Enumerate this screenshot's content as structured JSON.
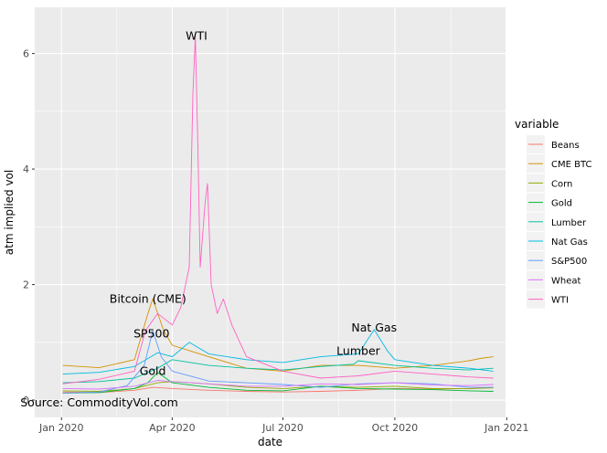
{
  "chart_data": {
    "type": "line",
    "title": "",
    "xlabel": "date",
    "ylabel": "atm implied vol",
    "xlim": [
      "2019-12-10",
      "2020-12-31"
    ],
    "ylim": [
      -0.3,
      6.8
    ],
    "x_ticks": [
      {
        "date": "2020-01-01",
        "label": "Jan 2020"
      },
      {
        "date": "2020-04-01",
        "label": "Apr 2020"
      },
      {
        "date": "2020-07-01",
        "label": "Jul 2020"
      },
      {
        "date": "2020-10-01",
        "label": "Oct 2020"
      },
      {
        "date": "2021-01-01",
        "label": "Jan 2021"
      }
    ],
    "y_ticks": [
      0,
      2,
      4,
      6
    ],
    "grid": true,
    "legend": {
      "title": "variable",
      "position": "right"
    },
    "series": [
      {
        "name": "Beans",
        "color": "#F8766D",
        "points": [
          [
            "2020-01-02",
            0.14
          ],
          [
            "2020-02-01",
            0.13
          ],
          [
            "2020-03-01",
            0.17
          ],
          [
            "2020-03-16",
            0.22
          ],
          [
            "2020-04-01",
            0.2
          ],
          [
            "2020-05-01",
            0.17
          ],
          [
            "2020-06-01",
            0.15
          ],
          [
            "2020-07-01",
            0.14
          ],
          [
            "2020-08-01",
            0.15
          ],
          [
            "2020-09-01",
            0.17
          ],
          [
            "2020-10-01",
            0.2
          ],
          [
            "2020-11-01",
            0.19
          ],
          [
            "2020-12-01",
            0.2
          ],
          [
            "2020-12-21",
            0.22
          ]
        ]
      },
      {
        "name": "CME BTC",
        "color": "#D39200",
        "points": [
          [
            "2020-01-02",
            0.6
          ],
          [
            "2020-02-01",
            0.56
          ],
          [
            "2020-03-01",
            0.7
          ],
          [
            "2020-03-12",
            1.5
          ],
          [
            "2020-03-16",
            1.75
          ],
          [
            "2020-03-25",
            1.2
          ],
          [
            "2020-04-01",
            0.95
          ],
          [
            "2020-05-01",
            0.75
          ],
          [
            "2020-06-01",
            0.55
          ],
          [
            "2020-07-01",
            0.5
          ],
          [
            "2020-08-01",
            0.6
          ],
          [
            "2020-09-01",
            0.6
          ],
          [
            "2020-10-01",
            0.55
          ],
          [
            "2020-11-01",
            0.6
          ],
          [
            "2020-12-01",
            0.68
          ],
          [
            "2020-12-10",
            0.72
          ],
          [
            "2020-12-21",
            0.75
          ]
        ]
      },
      {
        "name": "Corn",
        "color": "#93AA00",
        "points": [
          [
            "2020-01-02",
            0.16
          ],
          [
            "2020-02-01",
            0.15
          ],
          [
            "2020-03-01",
            0.2
          ],
          [
            "2020-03-20",
            0.3
          ],
          [
            "2020-04-01",
            0.32
          ],
          [
            "2020-05-01",
            0.28
          ],
          [
            "2020-06-01",
            0.22
          ],
          [
            "2020-07-01",
            0.2
          ],
          [
            "2020-08-01",
            0.24
          ],
          [
            "2020-09-01",
            0.22
          ],
          [
            "2020-10-01",
            0.24
          ],
          [
            "2020-11-01",
            0.2
          ],
          [
            "2020-12-01",
            0.2
          ],
          [
            "2020-12-21",
            0.21
          ]
        ]
      },
      {
        "name": "Gold",
        "color": "#00BA38",
        "points": [
          [
            "2020-01-02",
            0.12
          ],
          [
            "2020-02-01",
            0.13
          ],
          [
            "2020-03-01",
            0.2
          ],
          [
            "2020-03-12",
            0.3
          ],
          [
            "2020-03-20",
            0.48
          ],
          [
            "2020-04-01",
            0.3
          ],
          [
            "2020-05-01",
            0.22
          ],
          [
            "2020-06-01",
            0.17
          ],
          [
            "2020-07-01",
            0.16
          ],
          [
            "2020-08-01",
            0.24
          ],
          [
            "2020-09-01",
            0.2
          ],
          [
            "2020-10-01",
            0.19
          ],
          [
            "2020-11-01",
            0.18
          ],
          [
            "2020-12-01",
            0.16
          ],
          [
            "2020-12-21",
            0.15
          ]
        ]
      },
      {
        "name": "Lumber",
        "color": "#00C19F",
        "points": [
          [
            "2020-01-02",
            0.3
          ],
          [
            "2020-02-01",
            0.32
          ],
          [
            "2020-03-01",
            0.38
          ],
          [
            "2020-03-20",
            0.55
          ],
          [
            "2020-04-01",
            0.7
          ],
          [
            "2020-05-01",
            0.6
          ],
          [
            "2020-06-01",
            0.55
          ],
          [
            "2020-07-01",
            0.52
          ],
          [
            "2020-08-01",
            0.58
          ],
          [
            "2020-08-28",
            0.62
          ],
          [
            "2020-09-01",
            0.68
          ],
          [
            "2020-10-01",
            0.6
          ],
          [
            "2020-11-01",
            0.55
          ],
          [
            "2020-12-01",
            0.52
          ],
          [
            "2020-12-21",
            0.55
          ]
        ]
      },
      {
        "name": "Nat Gas",
        "color": "#00B9E3",
        "points": [
          [
            "2020-01-02",
            0.45
          ],
          [
            "2020-02-01",
            0.48
          ],
          [
            "2020-03-01",
            0.58
          ],
          [
            "2020-03-20",
            0.82
          ],
          [
            "2020-04-01",
            0.75
          ],
          [
            "2020-04-15",
            1.0
          ],
          [
            "2020-05-01",
            0.8
          ],
          [
            "2020-06-01",
            0.7
          ],
          [
            "2020-07-01",
            0.65
          ],
          [
            "2020-08-01",
            0.75
          ],
          [
            "2020-09-01",
            0.8
          ],
          [
            "2020-09-14",
            1.22
          ],
          [
            "2020-09-25",
            0.85
          ],
          [
            "2020-10-01",
            0.7
          ],
          [
            "2020-11-01",
            0.6
          ],
          [
            "2020-12-01",
            0.55
          ],
          [
            "2020-12-21",
            0.5
          ]
        ]
      },
      {
        "name": "S&P500",
        "color": "#619CFF",
        "points": [
          [
            "2020-01-02",
            0.12
          ],
          [
            "2020-02-01",
            0.14
          ],
          [
            "2020-02-24",
            0.25
          ],
          [
            "2020-03-09",
            0.6
          ],
          [
            "2020-03-16",
            1.2
          ],
          [
            "2020-03-23",
            0.75
          ],
          [
            "2020-04-01",
            0.5
          ],
          [
            "2020-05-01",
            0.33
          ],
          [
            "2020-06-01",
            0.3
          ],
          [
            "2020-07-01",
            0.27
          ],
          [
            "2020-08-01",
            0.22
          ],
          [
            "2020-09-01",
            0.28
          ],
          [
            "2020-10-01",
            0.3
          ],
          [
            "2020-11-01",
            0.28
          ],
          [
            "2020-12-01",
            0.22
          ],
          [
            "2020-12-21",
            0.22
          ]
        ]
      },
      {
        "name": "Wheat",
        "color": "#DB72FB",
        "points": [
          [
            "2020-01-02",
            0.2
          ],
          [
            "2020-02-01",
            0.19
          ],
          [
            "2020-03-01",
            0.24
          ],
          [
            "2020-03-20",
            0.34
          ],
          [
            "2020-04-01",
            0.32
          ],
          [
            "2020-05-01",
            0.28
          ],
          [
            "2020-06-01",
            0.24
          ],
          [
            "2020-07-01",
            0.24
          ],
          [
            "2020-08-01",
            0.28
          ],
          [
            "2020-09-01",
            0.27
          ],
          [
            "2020-10-01",
            0.3
          ],
          [
            "2020-11-01",
            0.26
          ],
          [
            "2020-12-01",
            0.25
          ],
          [
            "2020-12-21",
            0.27
          ]
        ]
      },
      {
        "name": "WTI",
        "color": "#FF61C3",
        "points": [
          [
            "2020-01-02",
            0.28
          ],
          [
            "2020-02-01",
            0.36
          ],
          [
            "2020-03-01",
            0.5
          ],
          [
            "2020-03-10",
            1.2
          ],
          [
            "2020-03-20",
            1.5
          ],
          [
            "2020-04-01",
            1.3
          ],
          [
            "2020-04-08",
            1.6
          ],
          [
            "2020-04-15",
            2.3
          ],
          [
            "2020-04-18",
            5.3
          ],
          [
            "2020-04-20",
            6.3
          ],
          [
            "2020-04-22",
            4.5
          ],
          [
            "2020-04-24",
            2.3
          ],
          [
            "2020-04-28",
            3.4
          ],
          [
            "2020-04-30",
            3.75
          ],
          [
            "2020-05-03",
            2.0
          ],
          [
            "2020-05-08",
            1.5
          ],
          [
            "2020-05-13",
            1.75
          ],
          [
            "2020-05-20",
            1.3
          ],
          [
            "2020-06-01",
            0.75
          ],
          [
            "2020-07-01",
            0.5
          ],
          [
            "2020-08-01",
            0.38
          ],
          [
            "2020-09-01",
            0.42
          ],
          [
            "2020-10-01",
            0.5
          ],
          [
            "2020-11-01",
            0.45
          ],
          [
            "2020-12-01",
            0.4
          ],
          [
            "2020-12-21",
            0.38
          ]
        ]
      }
    ],
    "annotations": [
      {
        "text": "WTI",
        "x": "2020-04-21",
        "y": 6.3
      },
      {
        "text": "Bitcoin (CME)",
        "x": "2020-03-12",
        "y": 1.75
      },
      {
        "text": "SP500",
        "x": "2020-03-15",
        "y": 1.15
      },
      {
        "text": "Gold",
        "x": "2020-03-16",
        "y": 0.5
      },
      {
        "text": "Nat Gas",
        "x": "2020-09-14",
        "y": 1.25
      },
      {
        "text": "Lumber",
        "x": "2020-09-01",
        "y": 0.85
      },
      {
        "text": "Source: CommodityVol.com",
        "x": "2020-02-01",
        "y": -0.05
      }
    ]
  }
}
